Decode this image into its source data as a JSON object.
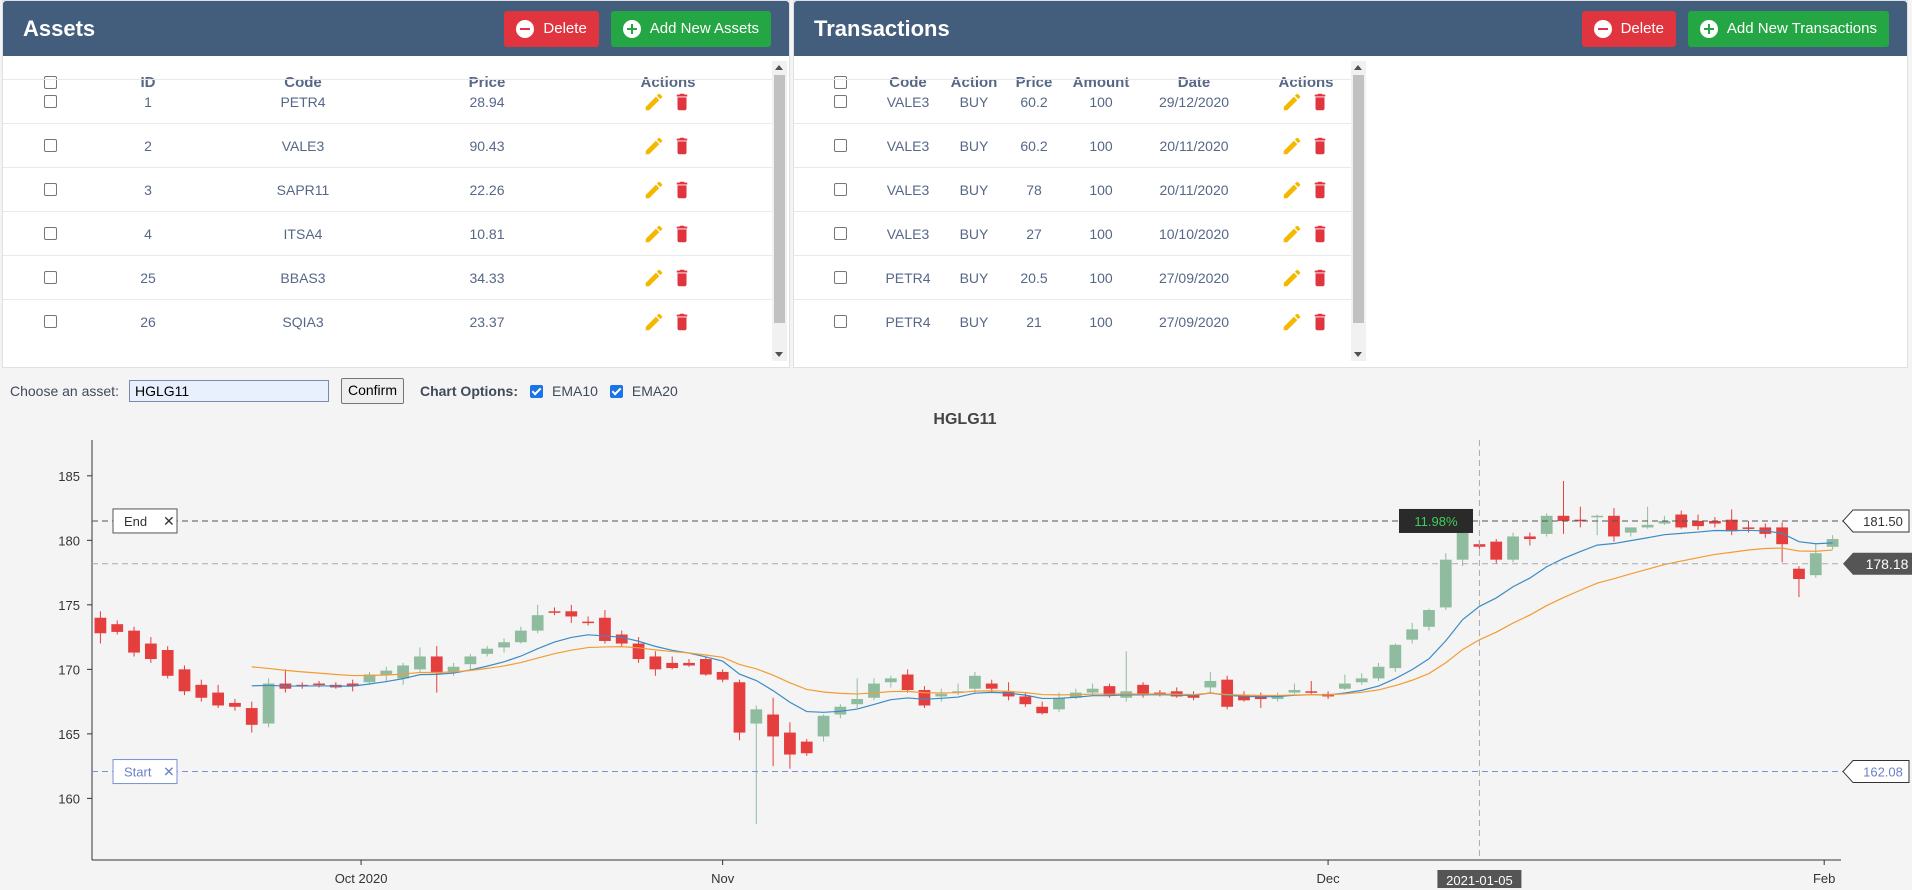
{
  "assets_panel": {
    "title": "Assets",
    "delete_label": "Delete",
    "add_label": "Add New Assets",
    "columns": [
      "ID",
      "Code",
      "Price",
      "Actions"
    ],
    "rows": [
      {
        "id": "1",
        "code": "PETR4",
        "price": "28.94"
      },
      {
        "id": "2",
        "code": "VALE3",
        "price": "90.43"
      },
      {
        "id": "3",
        "code": "SAPR11",
        "price": "22.26"
      },
      {
        "id": "4",
        "code": "ITSA4",
        "price": "10.81"
      },
      {
        "id": "25",
        "code": "BBAS3",
        "price": "34.33"
      },
      {
        "id": "26",
        "code": "SQIA3",
        "price": "23.37"
      }
    ]
  },
  "transactions_panel": {
    "title": "Transactions",
    "delete_label": "Delete",
    "add_label": "Add New Transactions",
    "columns": [
      "Code",
      "Action",
      "Price",
      "Amount",
      "Date",
      "Actions"
    ],
    "rows": [
      {
        "code": "VALE3",
        "action": "BUY",
        "price": "60.2",
        "amount": "100",
        "date": "29/12/2020"
      },
      {
        "code": "VALE3",
        "action": "BUY",
        "price": "60.2",
        "amount": "100",
        "date": "20/11/2020"
      },
      {
        "code": "VALE3",
        "action": "BUY",
        "price": "78",
        "amount": "100",
        "date": "20/11/2020"
      },
      {
        "code": "VALE3",
        "action": "BUY",
        "price": "27",
        "amount": "100",
        "date": "10/10/2020"
      },
      {
        "code": "PETR4",
        "action": "BUY",
        "price": "20.5",
        "amount": "100",
        "date": "27/09/2020"
      },
      {
        "code": "PETR4",
        "action": "BUY",
        "price": "21",
        "amount": "100",
        "date": "27/09/2020"
      }
    ]
  },
  "controls": {
    "asset_label": "Choose an asset:",
    "asset_value": "HGLG11",
    "confirm_label": "Confirm",
    "options_label": "Chart Options:",
    "ema10_label": "EMA10",
    "ema20_label": "EMA20",
    "ema10_checked": true,
    "ema20_checked": true
  },
  "icons": [
    "minus-circle-icon",
    "plus-circle-icon",
    "pencil-icon",
    "trash-icon",
    "close-icon"
  ],
  "colors": {
    "header_bg": "#435d7d",
    "delete_red": "#e0343f",
    "add_green": "#25a644",
    "edit_yellow": "#f5b800",
    "candle_up": "#8fbc9e",
    "candle_down": "#e53e3e",
    "ema10": "#3c8cc4",
    "ema20": "#f39c33"
  },
  "chart_data": {
    "type": "candlestick",
    "title": "HGLG11",
    "ylim": [
      156,
      187
    ],
    "y_ticks": [
      160,
      165,
      170,
      175,
      180,
      185
    ],
    "x_tick_labels": [
      "Oct 2020",
      "Nov",
      "Dec",
      "Feb"
    ],
    "crosshair_date": "2021-01-05",
    "percent_change": "11.98%",
    "lines": [
      {
        "name": "End",
        "value": 181.5,
        "label": "181.50",
        "style": "dashed"
      },
      {
        "name": "Start",
        "value": 162.08,
        "label": "162.08",
        "style": "dashed"
      }
    ],
    "current_price_label": "178.18",
    "current_price": 178.18,
    "candles": [
      {
        "o": 174,
        "h": 174.5,
        "l": 172,
        "c": 172.8
      },
      {
        "o": 173.5,
        "h": 173.8,
        "l": 172.7,
        "c": 172.9
      },
      {
        "o": 173,
        "h": 173.3,
        "l": 171,
        "c": 171.3
      },
      {
        "o": 172,
        "h": 172.5,
        "l": 170.5,
        "c": 170.8
      },
      {
        "o": 171.5,
        "h": 171.8,
        "l": 169.3,
        "c": 169.5
      },
      {
        "o": 170,
        "h": 170.3,
        "l": 168,
        "c": 168.3
      },
      {
        "o": 168.8,
        "h": 169.2,
        "l": 167.5,
        "c": 167.8
      },
      {
        "o": 168.2,
        "h": 168.8,
        "l": 167,
        "c": 167.2
      },
      {
        "o": 167.4,
        "h": 167.7,
        "l": 166.8,
        "c": 167.1
      },
      {
        "o": 167,
        "h": 167.5,
        "l": 165.1,
        "c": 165.7
      },
      {
        "o": 165.8,
        "h": 169.3,
        "l": 165.5,
        "c": 168.9
      },
      {
        "o": 168.9,
        "h": 170,
        "l": 168.2,
        "c": 168.5
      },
      {
        "o": 168.8,
        "h": 169,
        "l": 168.5,
        "c": 168.7
      },
      {
        "o": 168.9,
        "h": 169.1,
        "l": 168.6,
        "c": 168.8
      },
      {
        "o": 168.8,
        "h": 169,
        "l": 168.5,
        "c": 168.6
      },
      {
        "o": 168.9,
        "h": 169.2,
        "l": 168.3,
        "c": 168.7
      },
      {
        "o": 169,
        "h": 169.8,
        "l": 168.8,
        "c": 169.6
      },
      {
        "o": 169.6,
        "h": 170.2,
        "l": 169,
        "c": 169.9
      },
      {
        "o": 169.3,
        "h": 170.5,
        "l": 168.8,
        "c": 170.3
      },
      {
        "o": 170,
        "h": 171.7,
        "l": 169.8,
        "c": 171
      },
      {
        "o": 171,
        "h": 171.8,
        "l": 168.2,
        "c": 169.7
      },
      {
        "o": 169.8,
        "h": 170.5,
        "l": 169.5,
        "c": 170.2
      },
      {
        "o": 170.4,
        "h": 171.2,
        "l": 170,
        "c": 171
      },
      {
        "o": 171.2,
        "h": 171.8,
        "l": 171,
        "c": 171.6
      },
      {
        "o": 171.7,
        "h": 172.4,
        "l": 171.3,
        "c": 172.1
      },
      {
        "o": 172.1,
        "h": 173.3,
        "l": 172,
        "c": 173
      },
      {
        "o": 173,
        "h": 175,
        "l": 172.8,
        "c": 174.2
      },
      {
        "o": 174.5,
        "h": 174.8,
        "l": 174.2,
        "c": 174.4
      },
      {
        "o": 174.5,
        "h": 175,
        "l": 173.6,
        "c": 174.1
      },
      {
        "o": 173.7,
        "h": 174.1,
        "l": 173.4,
        "c": 173.6
      },
      {
        "o": 174,
        "h": 174.6,
        "l": 172,
        "c": 172.2
      },
      {
        "o": 172.7,
        "h": 173,
        "l": 171.8,
        "c": 172
      },
      {
        "o": 172,
        "h": 172.5,
        "l": 170.5,
        "c": 170.8
      },
      {
        "o": 171,
        "h": 171.4,
        "l": 169.5,
        "c": 170
      },
      {
        "o": 170.5,
        "h": 171,
        "l": 170,
        "c": 170.1
      },
      {
        "o": 170.5,
        "h": 170.8,
        "l": 170.2,
        "c": 170.3
      },
      {
        "o": 170.8,
        "h": 171,
        "l": 169.5,
        "c": 169.6
      },
      {
        "o": 169.8,
        "h": 170,
        "l": 169,
        "c": 169.2
      },
      {
        "o": 169,
        "h": 169.2,
        "l": 164.5,
        "c": 165.1
      },
      {
        "o": 165.8,
        "h": 167.2,
        "l": 158,
        "c": 166.9
      },
      {
        "o": 166.5,
        "h": 167.8,
        "l": 162.5,
        "c": 164.8
      },
      {
        "o": 165.1,
        "h": 165.9,
        "l": 162.3,
        "c": 163.4
      },
      {
        "o": 164.4,
        "h": 164.6,
        "l": 163.3,
        "c": 163.5
      },
      {
        "o": 164.8,
        "h": 166.5,
        "l": 164.4,
        "c": 166.4
      },
      {
        "o": 166.5,
        "h": 167.3,
        "l": 166.2,
        "c": 167.1
      },
      {
        "o": 167.3,
        "h": 169.3,
        "l": 167,
        "c": 167.7
      },
      {
        "o": 167.8,
        "h": 169.3,
        "l": 167.6,
        "c": 168.9
      },
      {
        "o": 169,
        "h": 169.5,
        "l": 168.6,
        "c": 169.3
      },
      {
        "o": 169.6,
        "h": 170,
        "l": 168.2,
        "c": 168.4
      },
      {
        "o": 168.4,
        "h": 168.7,
        "l": 167,
        "c": 167.2
      },
      {
        "o": 167.9,
        "h": 168.5,
        "l": 167.5,
        "c": 168.1
      },
      {
        "o": 168.2,
        "h": 168.9,
        "l": 168,
        "c": 168.3
      },
      {
        "o": 168.5,
        "h": 169.8,
        "l": 168.1,
        "c": 169.5
      },
      {
        "o": 168.9,
        "h": 169.2,
        "l": 168.2,
        "c": 168.5
      },
      {
        "o": 168.3,
        "h": 169,
        "l": 167.6,
        "c": 167.9
      },
      {
        "o": 167.9,
        "h": 168.2,
        "l": 167.1,
        "c": 167.3
      },
      {
        "o": 167.1,
        "h": 167.5,
        "l": 166.5,
        "c": 166.6
      },
      {
        "o": 166.9,
        "h": 168.2,
        "l": 166.7,
        "c": 167.8
      },
      {
        "o": 167.8,
        "h": 168.5,
        "l": 167.7,
        "c": 168.2
      },
      {
        "o": 168.2,
        "h": 168.9,
        "l": 168,
        "c": 168.5
      },
      {
        "o": 168.7,
        "h": 168.9,
        "l": 167.8,
        "c": 168
      },
      {
        "o": 167.8,
        "h": 171.4,
        "l": 167.5,
        "c": 168.3
      },
      {
        "o": 168.8,
        "h": 169,
        "l": 167.8,
        "c": 168
      },
      {
        "o": 168.2,
        "h": 168.4,
        "l": 167.9,
        "c": 168.1
      },
      {
        "o": 168.3,
        "h": 168.6,
        "l": 167.8,
        "c": 167.9
      },
      {
        "o": 168,
        "h": 168.3,
        "l": 167.6,
        "c": 167.8
      },
      {
        "o": 168.6,
        "h": 169.8,
        "l": 168.2,
        "c": 169.1
      },
      {
        "o": 169.2,
        "h": 169.5,
        "l": 166.9,
        "c": 167.1
      },
      {
        "o": 168,
        "h": 168.3,
        "l": 167.5,
        "c": 167.6
      },
      {
        "o": 168,
        "h": 168.2,
        "l": 167,
        "c": 167.7
      },
      {
        "o": 167.7,
        "h": 168.2,
        "l": 167.5,
        "c": 168
      },
      {
        "o": 168.2,
        "h": 168.9,
        "l": 168.1,
        "c": 168.4
      },
      {
        "o": 168.3,
        "h": 169.1,
        "l": 168.1,
        "c": 168.2
      },
      {
        "o": 168.1,
        "h": 168.3,
        "l": 167.7,
        "c": 167.9
      },
      {
        "o": 168.5,
        "h": 169.6,
        "l": 168.4,
        "c": 168.9
      },
      {
        "o": 169,
        "h": 169.7,
        "l": 168.8,
        "c": 169.3
      },
      {
        "o": 169.3,
        "h": 170.5,
        "l": 169.1,
        "c": 170.2
      },
      {
        "o": 170.1,
        "h": 172,
        "l": 169.8,
        "c": 171.9
      },
      {
        "o": 172.3,
        "h": 173.6,
        "l": 172,
        "c": 173.1
      },
      {
        "o": 173.3,
        "h": 174.7,
        "l": 173,
        "c": 174.6
      },
      {
        "o": 174.8,
        "h": 179,
        "l": 174.6,
        "c": 178.5
      },
      {
        "o": 178.5,
        "h": 182,
        "l": 178,
        "c": 181.2
      },
      {
        "o": 179.7,
        "h": 180,
        "l": 179.3,
        "c": 179.5
      },
      {
        "o": 179.9,
        "h": 180.1,
        "l": 178.2,
        "c": 178.5
      },
      {
        "o": 178.5,
        "h": 180.6,
        "l": 178.3,
        "c": 180.3
      },
      {
        "o": 180.3,
        "h": 180.6,
        "l": 179.6,
        "c": 180.1
      },
      {
        "o": 180.5,
        "h": 182.1,
        "l": 180.3,
        "c": 181.9
      },
      {
        "o": 181.9,
        "h": 184.6,
        "l": 180.5,
        "c": 181.5
      },
      {
        "o": 181.6,
        "h": 182.6,
        "l": 181,
        "c": 181.5
      },
      {
        "o": 181.8,
        "h": 182,
        "l": 180.4,
        "c": 181.9
      },
      {
        "o": 181.9,
        "h": 182.5,
        "l": 179.9,
        "c": 180.3
      },
      {
        "o": 180.6,
        "h": 181,
        "l": 180.3,
        "c": 181
      },
      {
        "o": 181,
        "h": 182.6,
        "l": 180.9,
        "c": 181.2
      },
      {
        "o": 181.3,
        "h": 181.9,
        "l": 181.2,
        "c": 181.5
      },
      {
        "o": 182,
        "h": 182.3,
        "l": 180.9,
        "c": 181
      },
      {
        "o": 181.5,
        "h": 182,
        "l": 180.8,
        "c": 181.1
      },
      {
        "o": 181.5,
        "h": 181.8,
        "l": 181,
        "c": 181.3
      },
      {
        "o": 181.6,
        "h": 182.4,
        "l": 180.4,
        "c": 180.7
      },
      {
        "o": 181,
        "h": 181.5,
        "l": 180.6,
        "c": 180.9
      },
      {
        "o": 181,
        "h": 181.3,
        "l": 180.2,
        "c": 180.5
      },
      {
        "o": 181,
        "h": 181.4,
        "l": 178.3,
        "c": 179.7
      },
      {
        "o": 177.8,
        "h": 178,
        "l": 175.6,
        "c": 177
      },
      {
        "o": 177.3,
        "h": 179.7,
        "l": 177.1,
        "c": 179
      },
      {
        "o": 179.5,
        "h": 180.4,
        "l": 179.3,
        "c": 180.1
      }
    ]
  }
}
